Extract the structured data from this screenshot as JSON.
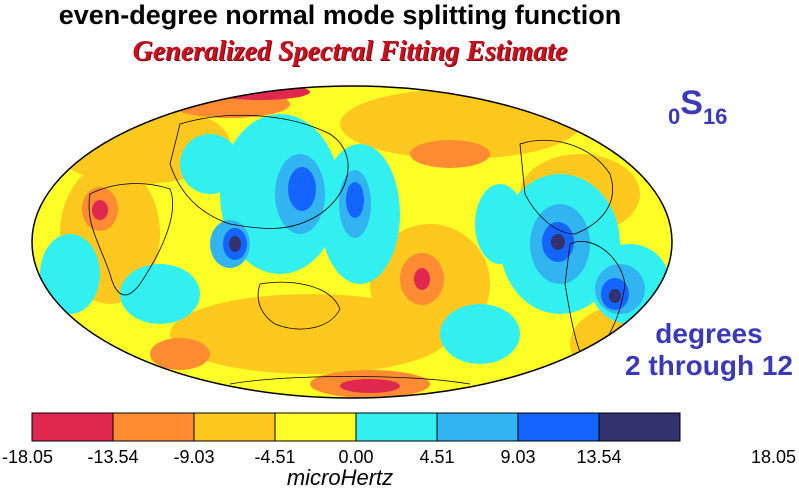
{
  "title": "even-degree normal mode splitting function",
  "subtitle": "Generalized Spectral Fitting Estimate",
  "mode_label": {
    "prefix": "0",
    "letter": "S",
    "suffix": "16"
  },
  "degrees_line1": "degrees",
  "degrees_line2": "2 through 12",
  "colorbar": {
    "unit": "microHertz",
    "ticks": [
      "-18.05",
      "-13.54",
      "-9.03",
      "-4.51",
      "0.00",
      "4.51",
      "9.03",
      "13.54",
      "18.05"
    ],
    "colors": [
      "#e0284e",
      "#ff8c32",
      "#ffc81e",
      "#ffff28",
      "#32f0f0",
      "#32b4f0",
      "#1464ff",
      "#32326e"
    ]
  }
}
